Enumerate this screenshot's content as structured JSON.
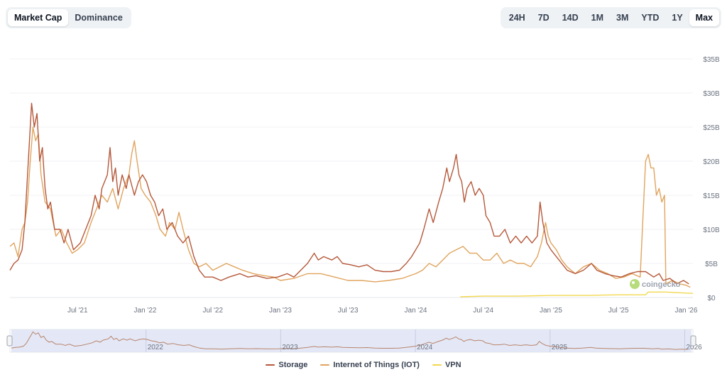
{
  "toggle": {
    "market_cap": "Market Cap",
    "dominance": "Dominance"
  },
  "ranges": [
    "24H",
    "7D",
    "14D",
    "1M",
    "3M",
    "YTD",
    "1Y",
    "Max"
  ],
  "active_range": "Max",
  "watermark": "coingecko",
  "colors": {
    "storage": "#b5583a",
    "iot": "#e0a45e",
    "vpn": "#f2d84f",
    "grid": "#f1f2f4",
    "navigator_fill": "#dbe0f3",
    "navigator_line": "#b8836c"
  },
  "chart_data": {
    "type": "line",
    "title": "",
    "xlabel": "",
    "ylabel": "",
    "ylim": [
      0,
      35
    ],
    "y_unit": "B",
    "y_ticks": [
      0,
      5,
      10,
      15,
      20,
      25,
      30,
      35
    ],
    "y_tick_labels": [
      "$0",
      "$5B",
      "$10B",
      "$15B",
      "$20B",
      "$25B",
      "$30B",
      "$35B"
    ],
    "x_range": [
      2021.0,
      2026.05
    ],
    "x_ticks": [
      2021.5,
      2022.0,
      2022.5,
      2023.0,
      2023.5,
      2024.0,
      2024.5,
      2025.0,
      2025.5,
      2026.0
    ],
    "x_tick_labels": [
      "Jul '21",
      "Jan '22",
      "Jul '22",
      "Jan '23",
      "Jul '23",
      "Jan '24",
      "Jul '24",
      "Jan '25",
      "Jul '25",
      "Jan '26"
    ],
    "navigator_labels": [
      {
        "x": 2022.0,
        "label": "2022"
      },
      {
        "x": 2023.0,
        "label": "2023"
      },
      {
        "x": 2024.0,
        "label": "2024"
      },
      {
        "x": 2025.0,
        "label": "2025"
      },
      {
        "x": 2026.0,
        "label": "2026"
      }
    ],
    "series": [
      {
        "name": "Storage",
        "key": "storage",
        "points": [
          [
            2021.0,
            4
          ],
          [
            2021.03,
            5
          ],
          [
            2021.06,
            5.5
          ],
          [
            2021.09,
            7
          ],
          [
            2021.11,
            11
          ],
          [
            2021.13,
            18
          ],
          [
            2021.15,
            25
          ],
          [
            2021.16,
            28.5
          ],
          [
            2021.18,
            25
          ],
          [
            2021.2,
            27
          ],
          [
            2021.22,
            20
          ],
          [
            2021.24,
            22
          ],
          [
            2021.26,
            16
          ],
          [
            2021.28,
            13
          ],
          [
            2021.3,
            14
          ],
          [
            2021.33,
            10
          ],
          [
            2021.37,
            10
          ],
          [
            2021.4,
            8
          ],
          [
            2021.43,
            10
          ],
          [
            2021.47,
            7
          ],
          [
            2021.52,
            8
          ],
          [
            2021.56,
            10
          ],
          [
            2021.6,
            12
          ],
          [
            2021.63,
            15
          ],
          [
            2021.66,
            13
          ],
          [
            2021.68,
            16
          ],
          [
            2021.72,
            18
          ],
          [
            2021.74,
            22
          ],
          [
            2021.76,
            17
          ],
          [
            2021.78,
            19
          ],
          [
            2021.8,
            15
          ],
          [
            2021.83,
            18
          ],
          [
            2021.86,
            16
          ],
          [
            2021.88,
            18
          ],
          [
            2021.92,
            15
          ],
          [
            2021.95,
            17
          ],
          [
            2021.98,
            18
          ],
          [
            2022.01,
            17
          ],
          [
            2022.04,
            15
          ],
          [
            2022.07,
            14
          ],
          [
            2022.1,
            12
          ],
          [
            2022.13,
            13
          ],
          [
            2022.16,
            10
          ],
          [
            2022.2,
            11
          ],
          [
            2022.24,
            9
          ],
          [
            2022.28,
            8
          ],
          [
            2022.32,
            9
          ],
          [
            2022.36,
            6
          ],
          [
            2022.4,
            4
          ],
          [
            2022.44,
            3
          ],
          [
            2022.5,
            3
          ],
          [
            2022.56,
            2.5
          ],
          [
            2022.62,
            3
          ],
          [
            2022.7,
            3.5
          ],
          [
            2022.76,
            3
          ],
          [
            2022.82,
            3.2
          ],
          [
            2022.9,
            2.8
          ],
          [
            2022.98,
            3
          ],
          [
            2023.05,
            3.5
          ],
          [
            2023.1,
            3
          ],
          [
            2023.15,
            4
          ],
          [
            2023.2,
            5
          ],
          [
            2023.25,
            6.5
          ],
          [
            2023.28,
            5.5
          ],
          [
            2023.32,
            6
          ],
          [
            2023.38,
            5.5
          ],
          [
            2023.42,
            6
          ],
          [
            2023.46,
            5
          ],
          [
            2023.52,
            4.8
          ],
          [
            2023.58,
            4.5
          ],
          [
            2023.64,
            4.8
          ],
          [
            2023.7,
            4
          ],
          [
            2023.76,
            3.8
          ],
          [
            2023.82,
            3.8
          ],
          [
            2023.88,
            4
          ],
          [
            2023.93,
            5
          ],
          [
            2023.97,
            6
          ],
          [
            2024.0,
            7
          ],
          [
            2024.03,
            8
          ],
          [
            2024.06,
            10
          ],
          [
            2024.1,
            13
          ],
          [
            2024.13,
            11
          ],
          [
            2024.17,
            14
          ],
          [
            2024.2,
            16
          ],
          [
            2024.23,
            19
          ],
          [
            2024.25,
            17
          ],
          [
            2024.28,
            19
          ],
          [
            2024.3,
            21
          ],
          [
            2024.32,
            18
          ],
          [
            2024.34,
            17
          ],
          [
            2024.36,
            14
          ],
          [
            2024.38,
            16
          ],
          [
            2024.41,
            17
          ],
          [
            2024.44,
            15
          ],
          [
            2024.47,
            16
          ],
          [
            2024.5,
            15
          ],
          [
            2024.52,
            12
          ],
          [
            2024.55,
            11
          ],
          [
            2024.58,
            9
          ],
          [
            2024.62,
            9
          ],
          [
            2024.66,
            10
          ],
          [
            2024.7,
            8
          ],
          [
            2024.74,
            9
          ],
          [
            2024.78,
            8
          ],
          [
            2024.82,
            9
          ],
          [
            2024.86,
            8
          ],
          [
            2024.9,
            9
          ],
          [
            2024.92,
            14
          ],
          [
            2024.94,
            11
          ],
          [
            2024.97,
            8
          ],
          [
            2025.0,
            7
          ],
          [
            2025.04,
            6
          ],
          [
            2025.08,
            5
          ],
          [
            2025.12,
            4
          ],
          [
            2025.18,
            3.5
          ],
          [
            2025.24,
            4
          ],
          [
            2025.3,
            5
          ],
          [
            2025.34,
            4
          ],
          [
            2025.4,
            3.5
          ],
          [
            2025.46,
            3.2
          ],
          [
            2025.52,
            3
          ],
          [
            2025.58,
            3.5
          ],
          [
            2025.64,
            3.8
          ],
          [
            2025.7,
            3.8
          ],
          [
            2025.76,
            3
          ],
          [
            2025.8,
            3.5
          ],
          [
            2025.83,
            2.5
          ],
          [
            2025.88,
            2.8
          ],
          [
            2025.93,
            2
          ],
          [
            2025.98,
            2.5
          ],
          [
            2026.02,
            2
          ]
        ]
      },
      {
        "name": "Internet of Things (IOT)",
        "key": "iot",
        "points": [
          [
            2021.0,
            7.5
          ],
          [
            2021.03,
            8
          ],
          [
            2021.06,
            6
          ],
          [
            2021.09,
            10
          ],
          [
            2021.11,
            11
          ],
          [
            2021.13,
            14
          ],
          [
            2021.15,
            20
          ],
          [
            2021.17,
            25
          ],
          [
            2021.19,
            23
          ],
          [
            2021.21,
            24
          ],
          [
            2021.23,
            18
          ],
          [
            2021.26,
            14
          ],
          [
            2021.3,
            13
          ],
          [
            2021.34,
            9
          ],
          [
            2021.38,
            10
          ],
          [
            2021.42,
            8
          ],
          [
            2021.46,
            6.5
          ],
          [
            2021.5,
            7
          ],
          [
            2021.55,
            8
          ],
          [
            2021.6,
            11
          ],
          [
            2021.64,
            13
          ],
          [
            2021.68,
            15
          ],
          [
            2021.72,
            14
          ],
          [
            2021.76,
            16
          ],
          [
            2021.8,
            13
          ],
          [
            2021.84,
            16
          ],
          [
            2021.88,
            18
          ],
          [
            2021.9,
            21
          ],
          [
            2021.92,
            23
          ],
          [
            2021.94,
            20
          ],
          [
            2021.97,
            16
          ],
          [
            2022.0,
            15
          ],
          [
            2022.04,
            14
          ],
          [
            2022.08,
            12
          ],
          [
            2022.11,
            10
          ],
          [
            2022.15,
            9
          ],
          [
            2022.18,
            11
          ],
          [
            2022.22,
            10
          ],
          [
            2022.25,
            12.5
          ],
          [
            2022.28,
            10
          ],
          [
            2022.32,
            7
          ],
          [
            2022.36,
            5
          ],
          [
            2022.4,
            4.5
          ],
          [
            2022.45,
            5
          ],
          [
            2022.5,
            4
          ],
          [
            2022.55,
            4.5
          ],
          [
            2022.6,
            5
          ],
          [
            2022.66,
            4.5
          ],
          [
            2022.72,
            4
          ],
          [
            2022.8,
            3.5
          ],
          [
            2022.88,
            3.2
          ],
          [
            2022.95,
            3
          ],
          [
            2023.0,
            2.5
          ],
          [
            2023.1,
            2.8
          ],
          [
            2023.2,
            3.5
          ],
          [
            2023.3,
            3.5
          ],
          [
            2023.4,
            3
          ],
          [
            2023.5,
            2.5
          ],
          [
            2023.6,
            2.5
          ],
          [
            2023.7,
            2.3
          ],
          [
            2023.8,
            2.5
          ],
          [
            2023.9,
            2.8
          ],
          [
            2024.0,
            3.5
          ],
          [
            2024.05,
            4
          ],
          [
            2024.1,
            5
          ],
          [
            2024.15,
            4.5
          ],
          [
            2024.2,
            5.5
          ],
          [
            2024.25,
            6.5
          ],
          [
            2024.3,
            7
          ],
          [
            2024.35,
            7.5
          ],
          [
            2024.4,
            6.5
          ],
          [
            2024.45,
            6.5
          ],
          [
            2024.5,
            5.5
          ],
          [
            2024.55,
            5.5
          ],
          [
            2024.6,
            6.5
          ],
          [
            2024.65,
            5
          ],
          [
            2024.7,
            5.5
          ],
          [
            2024.75,
            5
          ],
          [
            2024.8,
            5
          ],
          [
            2024.85,
            4.5
          ],
          [
            2024.9,
            6
          ],
          [
            2024.93,
            8
          ],
          [
            2024.96,
            11
          ],
          [
            2024.98,
            9
          ],
          [
            2025.0,
            8
          ],
          [
            2025.04,
            7
          ],
          [
            2025.08,
            5.5
          ],
          [
            2025.12,
            4.5
          ],
          [
            2025.18,
            3.5
          ],
          [
            2025.24,
            4.5
          ],
          [
            2025.3,
            5
          ],
          [
            2025.36,
            4
          ],
          [
            2025.42,
            3.5
          ],
          [
            2025.48,
            2.8
          ],
          [
            2025.54,
            3
          ],
          [
            2025.6,
            3.5
          ],
          [
            2025.66,
            3
          ],
          [
            2025.7,
            20
          ],
          [
            2025.72,
            21
          ],
          [
            2025.74,
            19
          ],
          [
            2025.76,
            19
          ],
          [
            2025.78,
            15
          ],
          [
            2025.8,
            16
          ],
          [
            2025.82,
            14
          ],
          [
            2025.84,
            15
          ],
          [
            2025.85,
            2
          ],
          [
            2025.9,
            2.5
          ],
          [
            2025.95,
            2
          ],
          [
            2026.0,
            1.8
          ],
          [
            2026.03,
            1.5
          ]
        ]
      },
      {
        "name": "VPN",
        "key": "vpn",
        "points": [
          [
            2024.33,
            0.1
          ],
          [
            2024.5,
            0.2
          ],
          [
            2024.75,
            0.2
          ],
          [
            2025.0,
            0.3
          ],
          [
            2025.25,
            0.3
          ],
          [
            2025.5,
            0.4
          ],
          [
            2025.7,
            0.4
          ],
          [
            2025.72,
            0.8
          ],
          [
            2025.85,
            0.8
          ],
          [
            2025.95,
            0.7
          ],
          [
            2026.05,
            0.6
          ]
        ]
      }
    ]
  }
}
